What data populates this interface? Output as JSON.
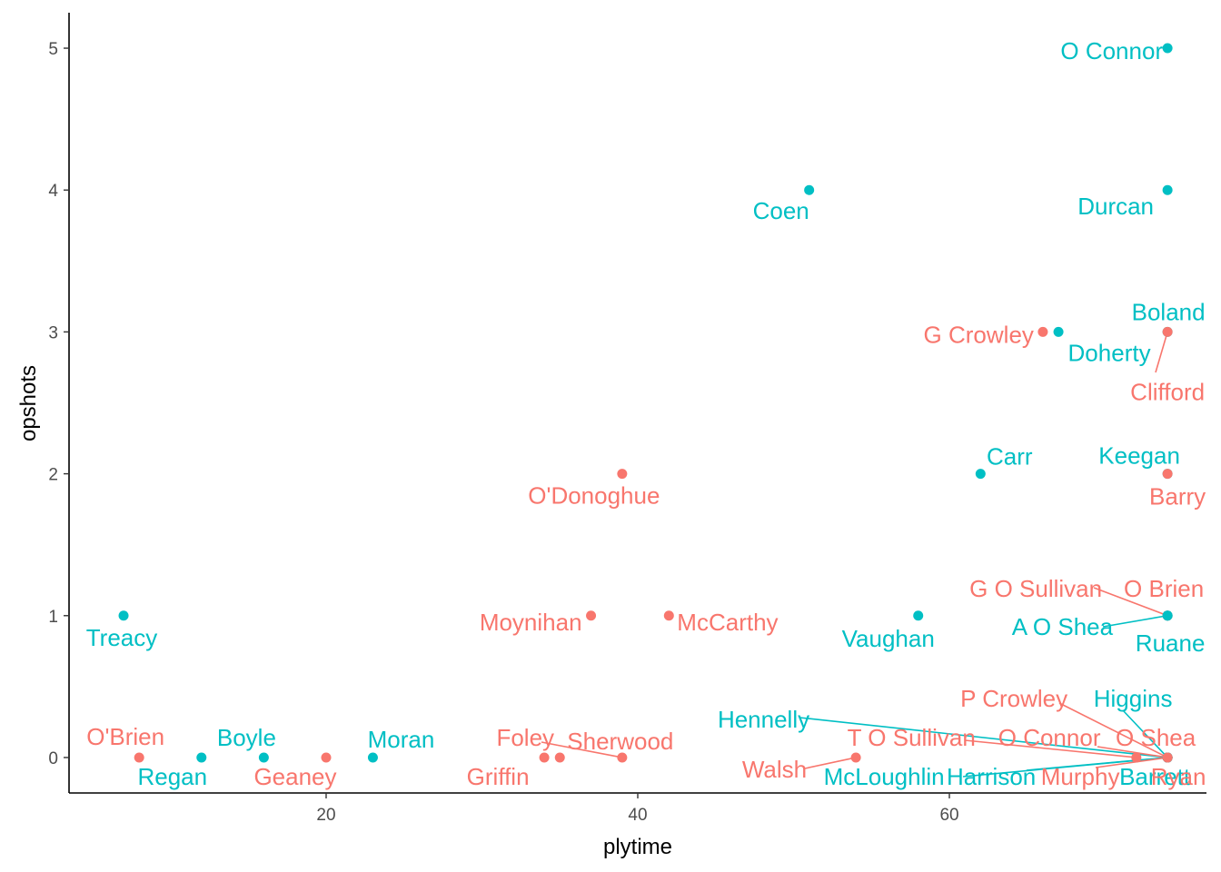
{
  "chart_data": {
    "type": "scatter",
    "title": "",
    "xlabel": "plytime",
    "ylabel": "opshots",
    "xlim": [
      3.5,
      76.5
    ],
    "ylim": [
      -0.25,
      5.25
    ],
    "xticks": [
      20,
      40,
      60
    ],
    "yticks": [
      0,
      1,
      2,
      3,
      4,
      5
    ],
    "grid": false,
    "legend": "none",
    "colors": {
      "group_a": "#F8766D",
      "group_b": "#00BFC4"
    },
    "points": [
      {
        "label": "O Connor",
        "x": 74,
        "y": 5,
        "group": "group_b"
      },
      {
        "label": "Coen",
        "x": 51,
        "y": 4,
        "group": "group_b"
      },
      {
        "label": "Durcan",
        "x": 74,
        "y": 4,
        "group": "group_b"
      },
      {
        "label": "G Crowley",
        "x": 66,
        "y": 3,
        "group": "group_a"
      },
      {
        "label": "Doherty",
        "x": 67,
        "y": 3,
        "group": "group_b"
      },
      {
        "label": "Boland",
        "x": 74,
        "y": 3,
        "group": "group_b"
      },
      {
        "label": "Clifford",
        "x": 74,
        "y": 3,
        "group": "group_a"
      },
      {
        "label": "O'Donoghue",
        "x": 39,
        "y": 2,
        "group": "group_a"
      },
      {
        "label": "Carr",
        "x": 62,
        "y": 2,
        "group": "group_b"
      },
      {
        "label": "Keegan",
        "x": 74,
        "y": 2,
        "group": "group_b"
      },
      {
        "label": "Barry",
        "x": 74,
        "y": 2,
        "group": "group_a"
      },
      {
        "label": "Treacy",
        "x": 7,
        "y": 1,
        "group": "group_b"
      },
      {
        "label": "Moynihan",
        "x": 37,
        "y": 1,
        "group": "group_a"
      },
      {
        "label": "McCarthy",
        "x": 42,
        "y": 1,
        "group": "group_a"
      },
      {
        "label": "Vaughan",
        "x": 58,
        "y": 1,
        "group": "group_b"
      },
      {
        "label": "G O Sullivan",
        "x": 74,
        "y": 1,
        "group": "group_a"
      },
      {
        "label": "O Brien",
        "x": 74,
        "y": 1,
        "group": "group_a"
      },
      {
        "label": "A O Shea",
        "x": 74,
        "y": 1,
        "group": "group_b"
      },
      {
        "label": "Ruane",
        "x": 74,
        "y": 1,
        "group": "group_b"
      },
      {
        "label": "O'Brien",
        "x": 8,
        "y": 0,
        "group": "group_a"
      },
      {
        "label": "Regan",
        "x": 12,
        "y": 0,
        "group": "group_b"
      },
      {
        "label": "Boyle",
        "x": 16,
        "y": 0,
        "group": "group_b"
      },
      {
        "label": "Geaney",
        "x": 20,
        "y": 0,
        "group": "group_a"
      },
      {
        "label": "Moran",
        "x": 23,
        "y": 0,
        "group": "group_b"
      },
      {
        "label": "Griffin",
        "x": 34,
        "y": 0,
        "group": "group_a"
      },
      {
        "label": "Foley",
        "x": 35,
        "y": 0,
        "group": "group_a"
      },
      {
        "label": "Sherwood",
        "x": 39,
        "y": 0,
        "group": "group_a"
      },
      {
        "label": "Walsh",
        "x": 54,
        "y": 0,
        "group": "group_a"
      },
      {
        "label": "T O Sullivan",
        "x": 72,
        "y": 0,
        "group": "group_a"
      },
      {
        "label": "Hennelly",
        "x": 74,
        "y": 0,
        "group": "group_b"
      },
      {
        "label": "P Crowley",
        "x": 74,
        "y": 0,
        "group": "group_a"
      },
      {
        "label": "Higgins",
        "x": 74,
        "y": 0,
        "group": "group_b"
      },
      {
        "label": "O Connor",
        "x": 74,
        "y": 0,
        "group": "group_a"
      },
      {
        "label": "O Shea",
        "x": 74,
        "y": 0,
        "group": "group_a"
      },
      {
        "label": "McLoughlin",
        "x": 74,
        "y": 0,
        "group": "group_b"
      },
      {
        "label": "Harrison",
        "x": 74,
        "y": 0,
        "group": "group_b"
      },
      {
        "label": "Murphy",
        "x": 74,
        "y": 0,
        "group": "group_a"
      },
      {
        "label": "Barrett",
        "x": 74,
        "y": 0,
        "group": "group_b"
      },
      {
        "label": "Ryan",
        "x": 74,
        "y": 0,
        "group": "group_a"
      }
    ]
  }
}
